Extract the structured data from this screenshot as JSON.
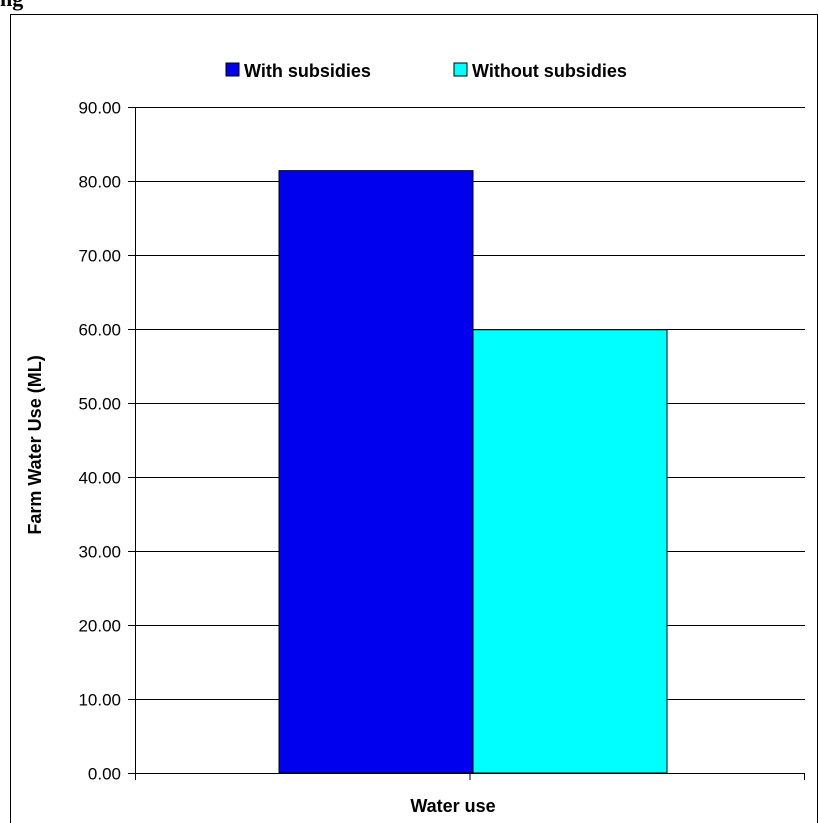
{
  "header_fragment": "ng",
  "chart_data": {
    "type": "bar",
    "title": "",
    "xlabel": "Water use",
    "ylabel": "Farm Water Use (ML)",
    "ylim": [
      0,
      90
    ],
    "yticks": [
      "0.00",
      "10.00",
      "20.00",
      "30.00",
      "40.00",
      "50.00",
      "60.00",
      "70.00",
      "80.00",
      "90.00"
    ],
    "categories": [
      "Water use"
    ],
    "series": [
      {
        "name": "With subsidies",
        "values": [
          81.4
        ],
        "color": "#0000ee"
      },
      {
        "name": "Without subsidies",
        "values": [
          59.9
        ],
        "color": "#00ffff"
      }
    ],
    "legend_position": "top",
    "grid": true
  }
}
